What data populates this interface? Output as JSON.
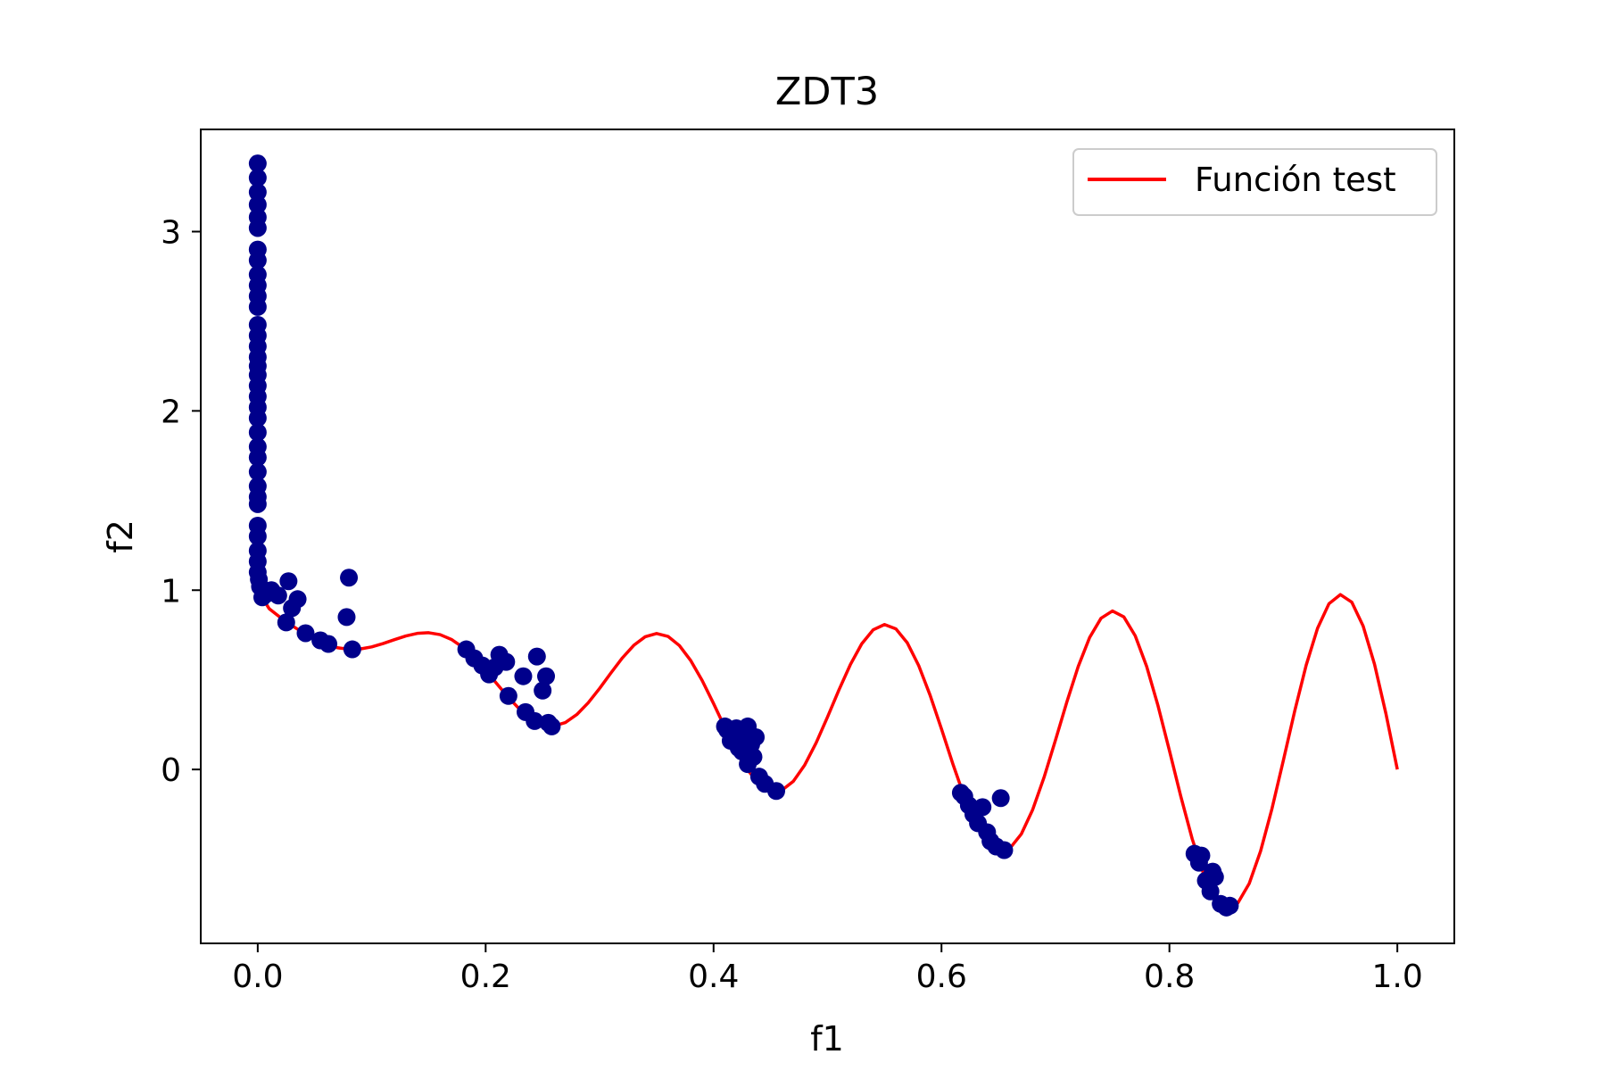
{
  "chart_data": {
    "type": "scatter",
    "title": "ZDT3",
    "xlabel": "f1",
    "ylabel": "f2",
    "xlim": [
      -0.05,
      1.05
    ],
    "ylim": [
      -0.97,
      3.57
    ],
    "xticks": [
      0.0,
      0.2,
      0.4,
      0.6,
      0.8,
      1.0
    ],
    "xtick_labels": [
      "0.0",
      "0.2",
      "0.4",
      "0.6",
      "0.8",
      "1.0"
    ],
    "yticks": [
      0,
      1,
      2,
      3
    ],
    "ytick_labels": [
      "0",
      "1",
      "2",
      "3"
    ],
    "grid": false,
    "legend": {
      "position": "top-right",
      "entries": [
        "Función test"
      ]
    },
    "series": [
      {
        "name": "Función test",
        "kind": "line",
        "color": "#ff0000",
        "function": "f2 = 1 - sqrt(f1) - f1*sin(10*pi*f1)",
        "x_range": [
          0.0,
          1.0
        ],
        "samples": 101
      },
      {
        "kind": "scatter",
        "color": "#00008b",
        "points": [
          [
            0.0,
            3.38
          ],
          [
            0.0,
            3.3
          ],
          [
            0.0,
            3.22
          ],
          [
            0.0,
            3.15
          ],
          [
            0.0,
            3.08
          ],
          [
            0.0,
            3.02
          ],
          [
            0.0,
            2.9
          ],
          [
            0.0,
            2.84
          ],
          [
            0.0,
            2.76
          ],
          [
            0.0,
            2.7
          ],
          [
            0.0,
            2.64
          ],
          [
            0.0,
            2.58
          ],
          [
            0.0,
            2.48
          ],
          [
            0.0,
            2.42
          ],
          [
            0.0,
            2.36
          ],
          [
            0.0,
            2.3
          ],
          [
            0.0,
            2.25
          ],
          [
            0.0,
            2.2
          ],
          [
            0.0,
            2.14
          ],
          [
            0.0,
            2.08
          ],
          [
            0.0,
            2.02
          ],
          [
            0.0,
            1.96
          ],
          [
            0.0,
            1.88
          ],
          [
            0.0,
            1.8
          ],
          [
            0.0,
            1.74
          ],
          [
            0.0,
            1.66
          ],
          [
            0.0,
            1.58
          ],
          [
            0.0,
            1.52
          ],
          [
            0.0,
            1.48
          ],
          [
            0.0,
            1.36
          ],
          [
            0.0,
            1.3
          ],
          [
            0.0,
            1.22
          ],
          [
            0.0,
            1.16
          ],
          [
            0.0,
            1.1
          ],
          [
            0.001,
            1.06
          ],
          [
            0.002,
            1.02
          ],
          [
            0.004,
            0.96
          ],
          [
            0.008,
            0.98
          ],
          [
            0.012,
            1.0
          ],
          [
            0.018,
            0.97
          ],
          [
            0.025,
            0.82
          ],
          [
            0.027,
            1.05
          ],
          [
            0.03,
            0.9
          ],
          [
            0.035,
            0.95
          ],
          [
            0.042,
            0.76
          ],
          [
            0.055,
            0.72
          ],
          [
            0.062,
            0.7
          ],
          [
            0.078,
            0.85
          ],
          [
            0.08,
            1.07
          ],
          [
            0.083,
            0.67
          ],
          [
            0.183,
            0.67
          ],
          [
            0.19,
            0.62
          ],
          [
            0.197,
            0.58
          ],
          [
            0.203,
            0.53
          ],
          [
            0.208,
            0.57
          ],
          [
            0.212,
            0.64
          ],
          [
            0.218,
            0.6
          ],
          [
            0.22,
            0.41
          ],
          [
            0.233,
            0.52
          ],
          [
            0.235,
            0.32
          ],
          [
            0.243,
            0.27
          ],
          [
            0.245,
            0.63
          ],
          [
            0.25,
            0.44
          ],
          [
            0.253,
            0.52
          ],
          [
            0.255,
            0.26
          ],
          [
            0.258,
            0.24
          ],
          [
            0.41,
            0.24
          ],
          [
            0.412,
            0.22
          ],
          [
            0.415,
            0.16
          ],
          [
            0.418,
            0.2
          ],
          [
            0.42,
            0.23
          ],
          [
            0.422,
            0.12
          ],
          [
            0.425,
            0.1
          ],
          [
            0.428,
            0.2
          ],
          [
            0.43,
            0.24
          ],
          [
            0.43,
            0.03
          ],
          [
            0.433,
            0.14
          ],
          [
            0.435,
            0.07
          ],
          [
            0.437,
            0.18
          ],
          [
            0.44,
            -0.04
          ],
          [
            0.445,
            -0.08
          ],
          [
            0.455,
            -0.12
          ],
          [
            0.617,
            -0.13
          ],
          [
            0.62,
            -0.15
          ],
          [
            0.624,
            -0.2
          ],
          [
            0.628,
            -0.25
          ],
          [
            0.632,
            -0.3
          ],
          [
            0.636,
            -0.21
          ],
          [
            0.64,
            -0.35
          ],
          [
            0.643,
            -0.4
          ],
          [
            0.648,
            -0.43
          ],
          [
            0.652,
            -0.16
          ],
          [
            0.655,
            -0.45
          ],
          [
            0.822,
            -0.47
          ],
          [
            0.826,
            -0.52
          ],
          [
            0.828,
            -0.48
          ],
          [
            0.832,
            -0.62
          ],
          [
            0.836,
            -0.68
          ],
          [
            0.838,
            -0.57
          ],
          [
            0.84,
            -0.6
          ],
          [
            0.845,
            -0.75
          ],
          [
            0.85,
            -0.77
          ],
          [
            0.853,
            -0.76
          ]
        ]
      }
    ]
  }
}
